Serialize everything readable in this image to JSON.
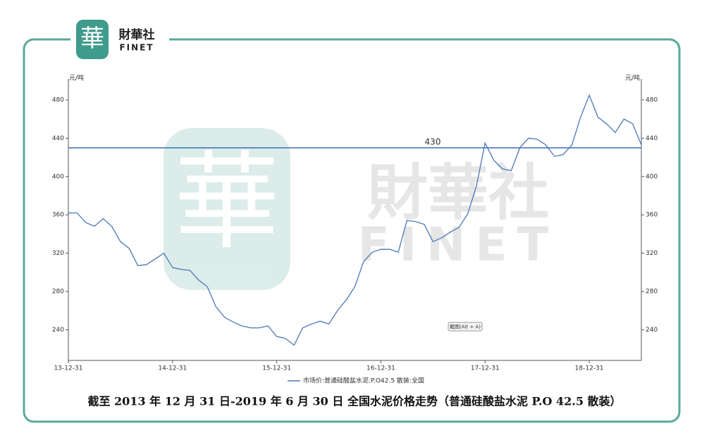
{
  "logo": {
    "mark": "華",
    "name": "財華社",
    "sub": "FINET"
  },
  "chart_data": {
    "type": "line",
    "y_unit": "元/吨",
    "y2_unit": "元/吨",
    "x": [
      0,
      1,
      2,
      3,
      4,
      5,
      6,
      7,
      8,
      9,
      10,
      11,
      12,
      13,
      14,
      15,
      16,
      17,
      18,
      19,
      20,
      21,
      22,
      23,
      24,
      25,
      26,
      27,
      28,
      29,
      30,
      31,
      32,
      33,
      34,
      35,
      36,
      37,
      38,
      39,
      40,
      41,
      42,
      43,
      44,
      45,
      46,
      47,
      48,
      49,
      50,
      51,
      52,
      53,
      54,
      55,
      56,
      57,
      58,
      59,
      60,
      61,
      62,
      63,
      64,
      65,
      66
    ],
    "xlim": [
      0,
      66
    ],
    "xticks": [
      {
        "value": 0,
        "label": "13-12-31"
      },
      {
        "value": 12,
        "label": "14-12-31"
      },
      {
        "value": 24,
        "label": "15-12-31"
      },
      {
        "value": 36,
        "label": "16-12-31"
      },
      {
        "value": 48,
        "label": "17-12-31"
      },
      {
        "value": 60,
        "label": "18-12-31"
      }
    ],
    "ylim": [
      208,
      502
    ],
    "yticks": [
      240,
      280,
      320,
      360,
      400,
      440,
      480
    ],
    "y2lim": [
      208,
      502
    ],
    "y2ticks": [
      240,
      280,
      320,
      360,
      400,
      440,
      480
    ],
    "series": [
      {
        "name": "市场价:普通硅酸盐水泥:P.O42.5 散装:全国",
        "color": "#4a78b8",
        "values": [
          362,
          362,
          352,
          348,
          356,
          348,
          332,
          325,
          307,
          308,
          314,
          320,
          305,
          303,
          302,
          292,
          285,
          264,
          253,
          248,
          244,
          242,
          242,
          244,
          233,
          231,
          224,
          242,
          246,
          249,
          246,
          260,
          271,
          285,
          311,
          321,
          324,
          324,
          321,
          354,
          353,
          350,
          332,
          336,
          342,
          347,
          361,
          390,
          435,
          417,
          408,
          406,
          430,
          440,
          439,
          433,
          421,
          423,
          433,
          462,
          485,
          462,
          455,
          446,
          460,
          455,
          433
        ]
      }
    ],
    "reference_line": {
      "value": 430,
      "label": "430",
      "color": "#3a6fb0"
    },
    "screenshot_hint": "截图(Alt + A)",
    "caption": "截至 2013 年 12 月 31 日-2019 年 6 月 30 日  全国水泥价格走势（普通硅酸盐水泥 P.O 42.5  散装）"
  }
}
